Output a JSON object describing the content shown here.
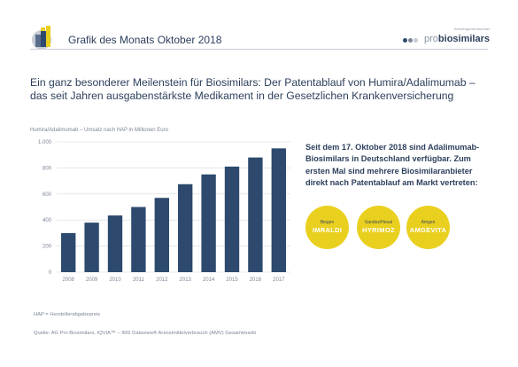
{
  "header": {
    "title": "Grafik des Monats Oktober 2018",
    "brand_small": "Arbeitsgemeinschaft",
    "brand_pro": "pro",
    "brand_bio": "biosimilars",
    "logo_icon": "bar-chart-cube-icon"
  },
  "headline": "Ein ganz besonderer Meilenstein für Biosimilars: Der Patentablauf von Humira/Adalimumab – das seit Jahren ausgabenstärkste Medikament in der Gesetzlichen Krankenversicherung",
  "info_text": "Seit dem 17. Oktober 2018 sind Adalimumab-Biosimilars in Deutschland verfügbar. Zum ersten Mal sind mehrere Biosimilaranbieter direkt nach Patentablauf am Markt vertreten:",
  "bubbles": [
    {
      "company": "Biogen",
      "product": "IMRALDI"
    },
    {
      "company": "Sandoz/Hexal",
      "product": "HYRIMOZ"
    },
    {
      "company": "Amgen",
      "product": "AMGEVITA"
    }
  ],
  "footnote": "HAP = Herstellerabgabepreis",
  "source": "Quelle: AG Pro Biosimilars, IQVIA™ – IMS Dataview® Arzneimittelverbrauch (AMV) Gesamtmarkt",
  "colors": {
    "navy": "#2d4a6e",
    "yellow": "#ead01e",
    "grid": "#d5d8de"
  },
  "chart_data": {
    "type": "bar",
    "title": "Humira/Adalimumab – Umsatz nach HAP in Millionen Euro",
    "xlabel": "",
    "ylabel": "",
    "categories": [
      "2008",
      "2009",
      "2010",
      "2011",
      "2012",
      "2013",
      "2014",
      "2015",
      "2016",
      "2017"
    ],
    "values": [
      300,
      380,
      435,
      500,
      570,
      675,
      750,
      810,
      880,
      950
    ],
    "ylim": [
      0,
      1000
    ],
    "yticks": [
      0,
      200,
      400,
      600,
      800,
      1000
    ],
    "ytick_labels": [
      "0",
      "200",
      "400",
      "600",
      "800",
      "1.000"
    ],
    "grid": true,
    "legend": "none"
  }
}
